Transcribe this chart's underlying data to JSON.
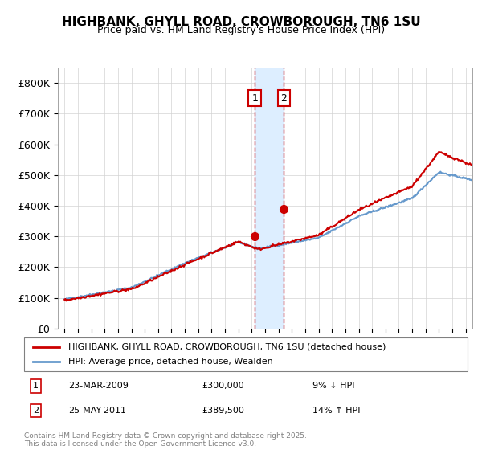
{
  "title": "HIGHBANK, GHYLL ROAD, CROWBOROUGH, TN6 1SU",
  "subtitle": "Price paid vs. HM Land Registry's House Price Index (HPI)",
  "legend_line1": "HIGHBANK, GHYLL ROAD, CROWBOROUGH, TN6 1SU (detached house)",
  "legend_line2": "HPI: Average price, detached house, Wealden",
  "footnote": "Contains HM Land Registry data © Crown copyright and database right 2025.\nThis data is licensed under the Open Government Licence v3.0.",
  "transaction1_label": "1",
  "transaction1_date": "23-MAR-2009",
  "transaction1_price": "£300,000",
  "transaction1_hpi": "9% ↓ HPI",
  "transaction2_label": "2",
  "transaction2_date": "25-MAY-2011",
  "transaction2_price": "£389,500",
  "transaction2_hpi": "14% ↑ HPI",
  "red_color": "#cc0000",
  "blue_color": "#6699cc",
  "shaded_color": "#ddeeff",
  "ylim": [
    0,
    850000
  ],
  "yticks": [
    0,
    100000,
    200000,
    300000,
    400000,
    500000,
    600000,
    700000,
    800000
  ],
  "ytick_labels": [
    "£0",
    "£100K",
    "£200K",
    "£300K",
    "£400K",
    "£500K",
    "£600K",
    "£700K",
    "£800K"
  ],
  "transaction1_x": 2009.23,
  "transaction2_x": 2011.4,
  "transaction1_y": 300000,
  "transaction2_y": 389500,
  "xmin": 1994.5,
  "xmax": 2025.5
}
